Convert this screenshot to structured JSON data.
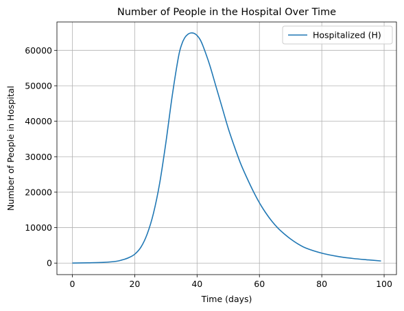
{
  "chart_data": {
    "type": "line",
    "title": "Number of People in the Hospital Over Time",
    "xlabel": "Time (days)",
    "ylabel": "Number of People in Hospital",
    "xlim": [
      -4.95,
      103.95
    ],
    "ylim": [
      -3250,
      68000
    ],
    "xticks": [
      0,
      20,
      40,
      60,
      80,
      100
    ],
    "yticks": [
      0,
      10000,
      20000,
      30000,
      40000,
      50000,
      60000
    ],
    "grid": true,
    "legend_position": "top-right",
    "series": [
      {
        "name": "Hospitalized (H)",
        "color": "#1f77b4",
        "x": [
          0,
          5,
          10,
          14,
          16,
          18,
          20,
          22,
          24,
          26,
          28,
          30,
          32,
          34,
          35,
          36,
          37,
          38,
          39,
          40,
          41,
          42,
          44,
          46,
          48,
          50,
          52,
          54,
          56,
          58,
          60,
          62,
          64,
          66,
          68,
          70,
          72,
          75,
          80,
          85,
          90,
          95,
          99
        ],
        "y": [
          0,
          80,
          200,
          500,
          900,
          1500,
          2500,
          4500,
          8200,
          14000,
          22500,
          34000,
          47000,
          58000,
          61500,
          63500,
          64500,
          64900,
          64800,
          64200,
          63000,
          61000,
          56000,
          50000,
          44000,
          38000,
          32800,
          28000,
          24000,
          20300,
          17000,
          14200,
          11800,
          9800,
          8200,
          6800,
          5600,
          4200,
          2800,
          1900,
          1300,
          900,
          600
        ]
      }
    ]
  }
}
